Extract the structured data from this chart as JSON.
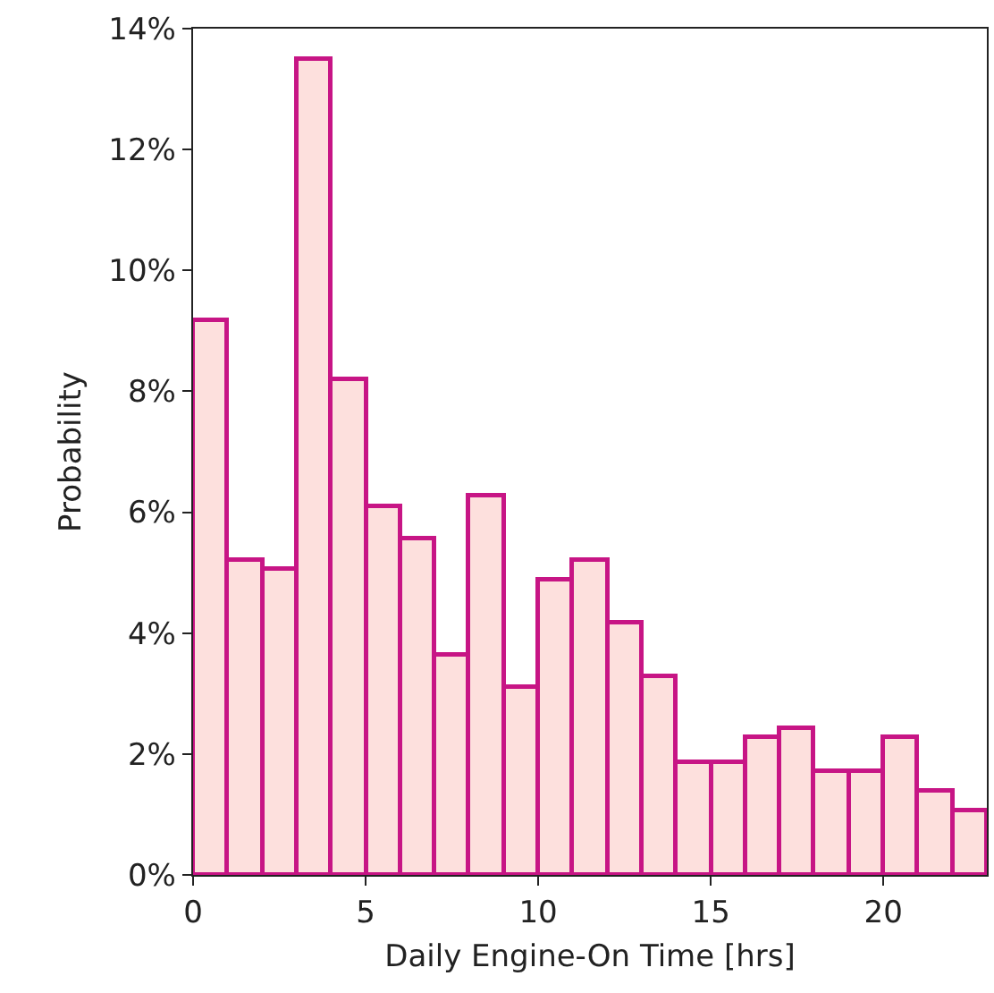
{
  "chart_data": {
    "type": "histogram",
    "xlabel": "Daily Engine-On Time [hrs]",
    "ylabel": "Probability",
    "bins": [
      0,
      1,
      2,
      3,
      4,
      5,
      6,
      7,
      8,
      9,
      10,
      11,
      12,
      13,
      14,
      15,
      16,
      17,
      18,
      19,
      20,
      21,
      22,
      23
    ],
    "values": [
      9.19,
      5.2,
      5.07,
      13.5,
      8.19,
      6.09,
      5.55,
      3.65,
      6.27,
      3.12,
      4.87,
      5.2,
      4.18,
      3.3,
      1.87,
      1.87,
      2.27,
      2.43,
      1.73,
      1.73,
      2.29,
      1.4,
      1.06
    ],
    "color": "#c71585",
    "xlim": [
      0,
      23
    ],
    "xticks": [
      0,
      5,
      10,
      15,
      20
    ],
    "ylim": [
      0,
      14
    ],
    "yticks": [
      {
        "value": 0,
        "label": "0%"
      },
      {
        "value": 2,
        "label": "2%"
      },
      {
        "value": 4,
        "label": "4%"
      },
      {
        "value": 6,
        "label": "6%"
      },
      {
        "value": 8,
        "label": "8%"
      },
      {
        "value": 10,
        "label": "10%"
      },
      {
        "value": 12,
        "label": "12%"
      },
      {
        "value": 14,
        "label": "14%"
      }
    ],
    "grid": false,
    "legend": false
  }
}
